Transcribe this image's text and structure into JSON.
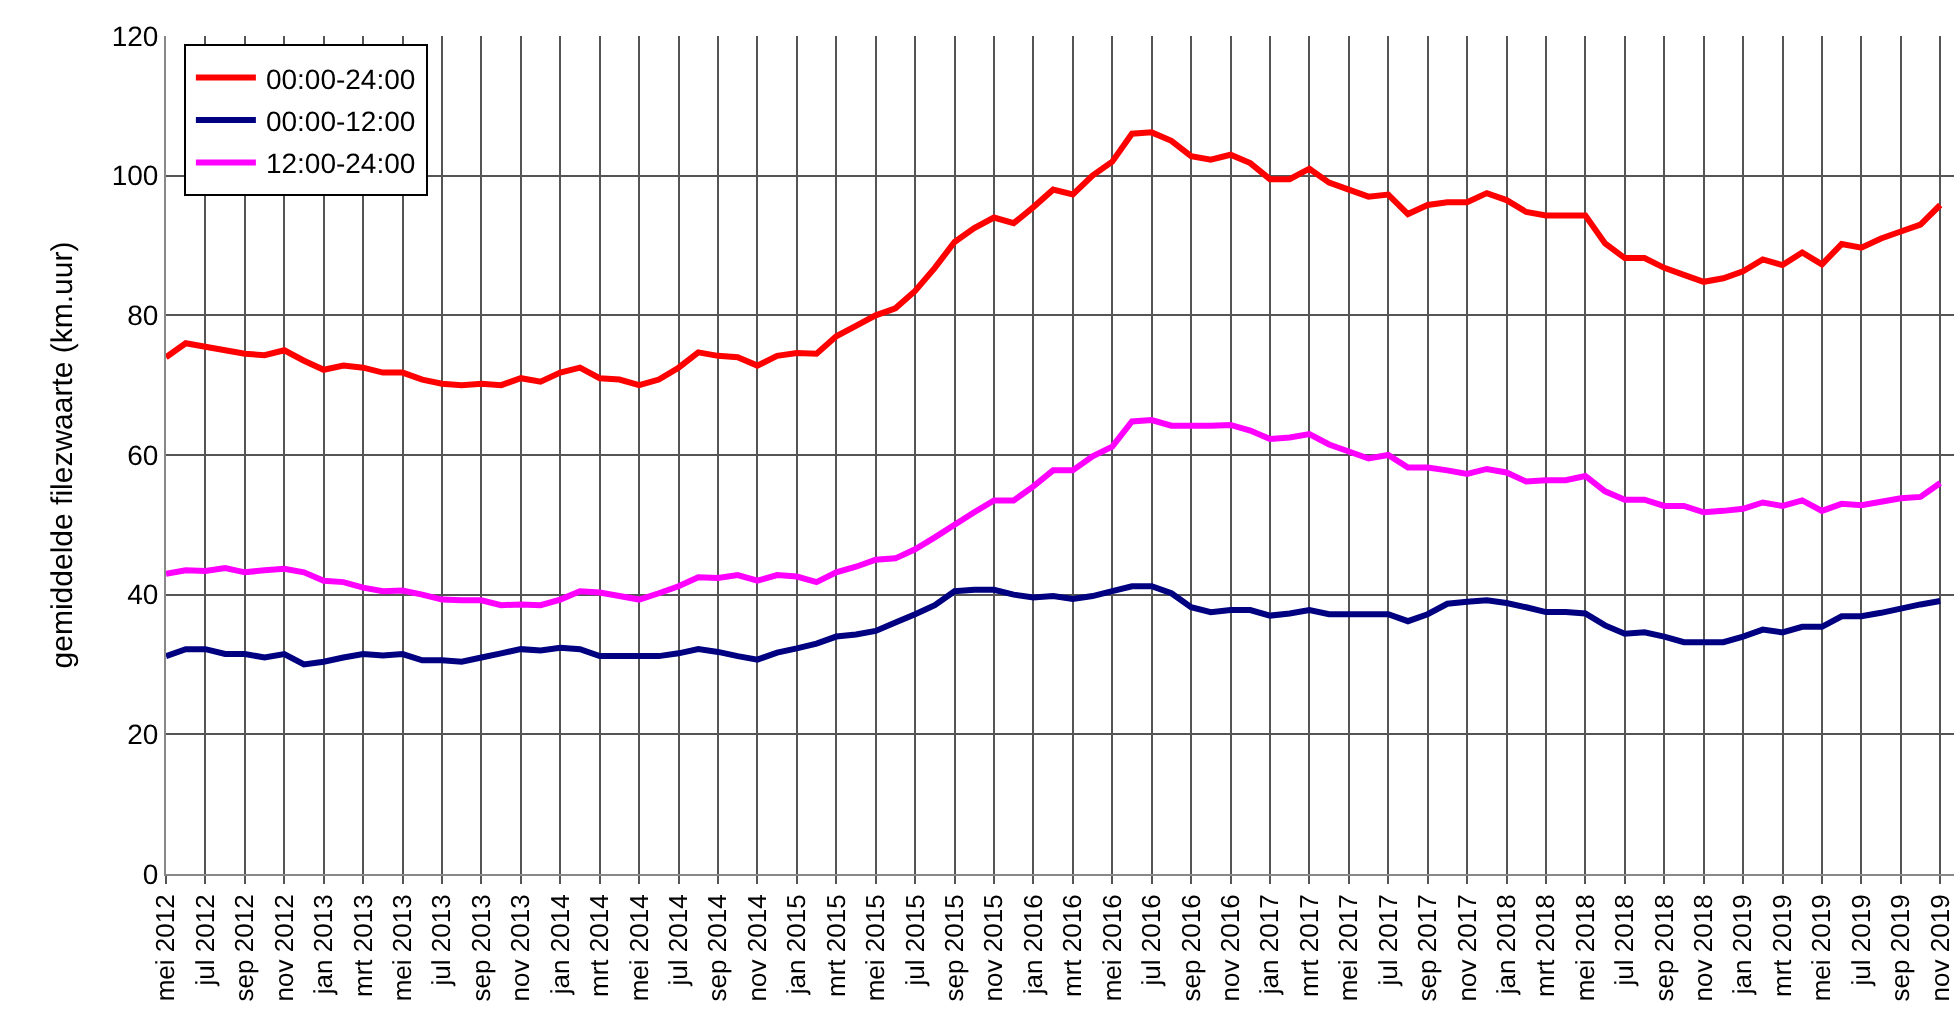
{
  "chart_data": {
    "type": "line",
    "ylabel": "gemiddelde filezwaarte (km.uur)",
    "categories": [
      "mei 2012",
      null,
      "jul 2012",
      null,
      "sep 2012",
      null,
      "nov 2012",
      null,
      "jan 2013",
      null,
      "mrt 2013",
      null,
      "mei 2013",
      null,
      "jul 2013",
      null,
      "sep 2013",
      null,
      "nov 2013",
      null,
      "jan 2014",
      null,
      "mrt 2014",
      null,
      "mei 2014",
      null,
      "jul 2014",
      null,
      "sep 2014",
      null,
      "nov 2014",
      null,
      "jan 2015",
      null,
      "mrt 2015",
      null,
      "mei 2015",
      null,
      "jul 2015",
      null,
      "sep 2015",
      null,
      "nov 2015",
      null,
      "jan 2016",
      null,
      "mrt 2016",
      null,
      "mei 2016",
      null,
      "jul 2016",
      null,
      "sep 2016",
      null,
      "nov 2016",
      null,
      "jan 2017",
      null,
      "mrt 2017",
      null,
      "mei 2017",
      null,
      "jul 2017",
      null,
      "sep 2017",
      null,
      "nov 2017",
      null,
      "jan 2018",
      null,
      "mrt 2018",
      null,
      "mei 2018",
      null,
      "jul 2018",
      null,
      "sep 2018",
      null,
      "nov 2018",
      null,
      "jan 2019",
      null,
      "mrt 2019",
      null,
      "mei 2019",
      null,
      "jul 2019",
      null,
      "sep 2019",
      null,
      "nov 2019"
    ],
    "series": [
      {
        "name": "00:00-24:00",
        "color": "#ff0000",
        "values": [
          74,
          76,
          75.5,
          75,
          74.5,
          74.3,
          75,
          73.5,
          72.2,
          72.8,
          72.5,
          71.8,
          71.8,
          70.8,
          70.2,
          70,
          70.2,
          70,
          71,
          70.5,
          71.8,
          72.5,
          71,
          70.8,
          70,
          70.8,
          72.5,
          74.7,
          74.2,
          74,
          72.8,
          74.2,
          74.6,
          74.5,
          77,
          78.5,
          80,
          81,
          83.5,
          86.8,
          90.5,
          92.5,
          94,
          93.2,
          95.5,
          98,
          97.3,
          100,
          102,
          106,
          106.2,
          105,
          102.8,
          102.3,
          103,
          101.8,
          99.5,
          99.5,
          101,
          99,
          98,
          97,
          97.3,
          94.5,
          95.8,
          96.2,
          96.2,
          97.5,
          96.5,
          94.8,
          94.3,
          94.3,
          94.3,
          90.3,
          88.2,
          88.2,
          86.8,
          85.8,
          84.8,
          85.3,
          86.3,
          88,
          87.2,
          89,
          87.3,
          90.2,
          89.7,
          91,
          92,
          93,
          95.8
        ]
      },
      {
        "name": "00:00-12:00",
        "color": "#000080",
        "values": [
          31.2,
          32.2,
          32.2,
          31.5,
          31.5,
          31,
          31.5,
          30,
          30.4,
          31,
          31.5,
          31.3,
          31.5,
          30.6,
          30.6,
          30.4,
          31,
          31.6,
          32.2,
          32,
          32.4,
          32.2,
          31.2,
          31.2,
          31.2,
          31.2,
          31.6,
          32.2,
          31.8,
          31.2,
          30.7,
          31.7,
          32.3,
          33,
          34,
          34.3,
          34.8,
          36,
          37.2,
          38.5,
          40.5,
          40.7,
          40.7,
          40,
          39.6,
          39.8,
          39.4,
          39.8,
          40.5,
          41.2,
          41.2,
          40.2,
          38.2,
          37.5,
          37.8,
          37.8,
          37,
          37.3,
          37.8,
          37.2,
          37.2,
          37.2,
          37.2,
          36.2,
          37.2,
          38.7,
          39,
          39.2,
          38.8,
          38.2,
          37.5,
          37.5,
          37.3,
          35.6,
          34.4,
          34.6,
          34,
          33.2,
          33.2,
          33.2,
          34,
          35,
          34.6,
          35.4,
          35.4,
          36.9,
          36.9,
          37.4,
          38,
          38.6,
          39.1
        ]
      },
      {
        "name": "12:00-24:00",
        "color": "#ff00ff",
        "values": [
          43,
          43.5,
          43.4,
          43.8,
          43.2,
          43.5,
          43.7,
          43.2,
          42,
          41.8,
          41,
          40.5,
          40.6,
          40,
          39.3,
          39.2,
          39.2,
          38.5,
          38.6,
          38.5,
          39.3,
          40.5,
          40.3,
          39.8,
          39.3,
          40.2,
          41.2,
          42.5,
          42.4,
          42.8,
          42,
          42.8,
          42.6,
          41.8,
          43.2,
          44,
          45,
          45.2,
          46.5,
          48.2,
          50,
          51.8,
          53.5,
          53.5,
          55.5,
          57.8,
          57.8,
          59.8,
          61.2,
          64.8,
          65,
          64.2,
          64.2,
          64.2,
          64.3,
          63.5,
          62.3,
          62.5,
          63,
          61.5,
          60.5,
          59.5,
          60,
          58.2,
          58.2,
          57.8,
          57.3,
          58,
          57.5,
          56.2,
          56.4,
          56.4,
          57,
          54.8,
          53.6,
          53.6,
          52.7,
          52.7,
          51.8,
          52,
          52.3,
          53.2,
          52.7,
          53.5,
          52,
          53,
          52.8,
          53.3,
          53.8,
          54,
          56
        ]
      }
    ],
    "ylim": [
      0,
      120
    ],
    "yticks": [
      0,
      20,
      40,
      60,
      80,
      100,
      120
    ],
    "grid": true,
    "legend": "top left",
    "marker": "none",
    "line_style": "solid"
  }
}
